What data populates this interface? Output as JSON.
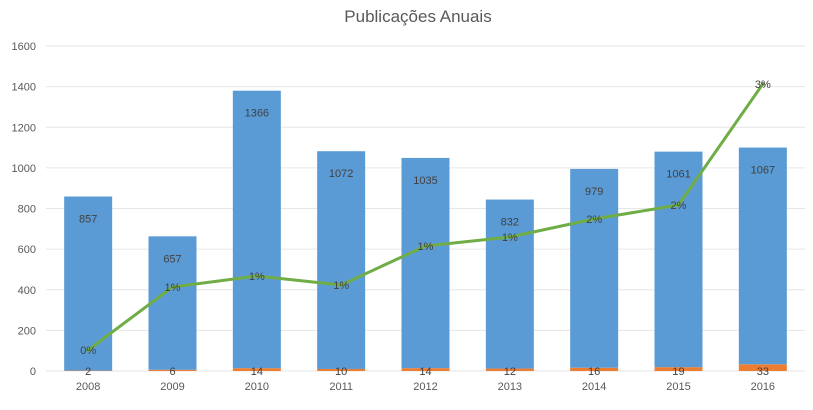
{
  "chart_data": {
    "type": "bar",
    "title": "Publicações Anuais",
    "categories": [
      "2008",
      "2009",
      "2010",
      "2011",
      "2012",
      "2013",
      "2014",
      "2015",
      "2016"
    ],
    "ylim": [
      0,
      1600
    ],
    "yticks": [
      "0",
      "200",
      "400",
      "600",
      "800",
      "1000",
      "1200",
      "1400",
      "1600"
    ],
    "grid": true,
    "series": [
      {
        "type": "bar",
        "color": "#5b9bd5",
        "values": [
          857,
          657,
          1366,
          1072,
          1035,
          832,
          979,
          1061,
          1067
        ],
        "labels": [
          "857",
          "657",
          "1366",
          "1072",
          "1035",
          "832",
          "979",
          "1061",
          "1067"
        ]
      },
      {
        "type": "bar",
        "color": "#ed7d31",
        "values": [
          2,
          6,
          14,
          10,
          14,
          12,
          16,
          19,
          33
        ],
        "labels": [
          "2",
          "6",
          "14",
          "10",
          "14",
          "12",
          "16",
          "19",
          "33"
        ]
      },
      {
        "type": "line",
        "color": "#70ad47",
        "values": [
          0,
          1,
          1,
          1,
          1,
          1,
          2,
          2,
          3
        ],
        "labels": [
          "0%",
          "1%",
          "1%",
          "1%",
          "1%",
          "1%",
          "2%",
          "2%",
          "3%"
        ]
      }
    ]
  }
}
